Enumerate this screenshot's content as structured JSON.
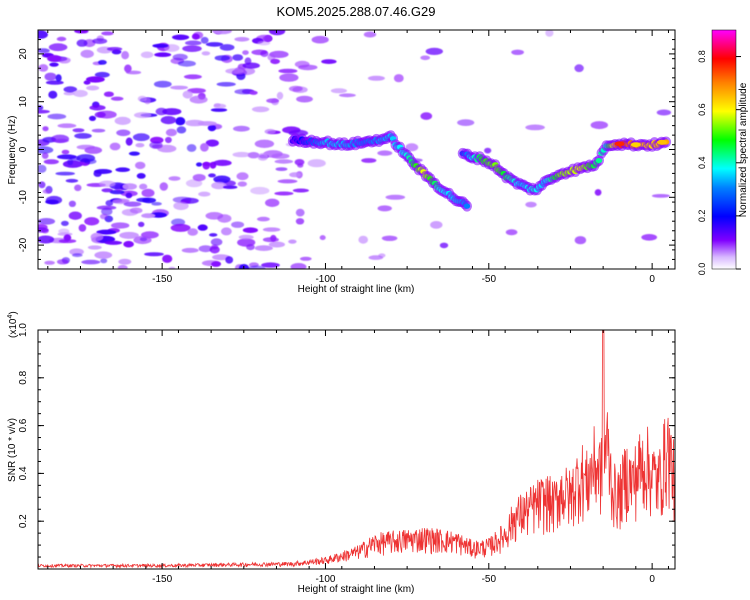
{
  "figure_title": "KOM5.2025.288.07.46.G29",
  "chart_data": [
    {
      "type": "heatmap",
      "title": "KOM5.2025.288.07.46.G29",
      "xlabel": "Height of straight line (km)",
      "ylabel": "Frequency (Hz)",
      "xlim": [
        -188,
        7
      ],
      "ylim": [
        -25,
        25
      ],
      "xticks": [
        -150,
        -100,
        -50,
        0
      ],
      "xtick_labels": [
        "-150",
        "-100",
        "-50",
        "0"
      ],
      "yticks": [
        -20,
        -10,
        0,
        10,
        20
      ],
      "ytick_labels": [
        "-20",
        "-10",
        "0",
        "10",
        "20"
      ],
      "colorbar": {
        "label": "Normalized spectral amplitude",
        "range": [
          0,
          0.9
        ],
        "ticks": [
          0,
          0.2,
          0.4,
          0.6,
          0.8
        ],
        "tick_labels": [
          "0.0",
          "0.2",
          "0.4",
          "0.6",
          "0.8"
        ],
        "colormap": [
          "#ffffff",
          "#8000ff",
          "#0000ff",
          "#00ffff",
          "#00ff00",
          "#ffff00",
          "#ff8000",
          "#ff0000",
          "#ff00ff"
        ]
      },
      "trace": {
        "description_points": [
          {
            "height_km": -110,
            "freq_hz": 2.0,
            "amp": 0.05
          },
          {
            "height_km": -100,
            "freq_hz": 1.5,
            "amp": 0.25
          },
          {
            "height_km": -95,
            "freq_hz": 1.0,
            "amp": 0.25
          },
          {
            "height_km": -88,
            "freq_hz": 1.5,
            "amp": 0.2
          },
          {
            "height_km": -80,
            "freq_hz": 2.5,
            "amp": 0.25
          },
          {
            "height_km": -75,
            "freq_hz": -1.5,
            "amp": 0.3
          },
          {
            "height_km": -70,
            "freq_hz": -5.0,
            "amp": 0.5
          },
          {
            "height_km": -65,
            "freq_hz": -8.0,
            "amp": 0.3
          },
          {
            "height_km": -60,
            "freq_hz": -10.5,
            "amp": 0.25
          },
          {
            "height_km": -56,
            "freq_hz": -12.0,
            "amp": 0.2
          },
          {
            "height_km": -58,
            "freq_hz": -1.0,
            "amp": 0.15
          },
          {
            "height_km": -52,
            "freq_hz": -2.0,
            "amp": 0.4
          },
          {
            "height_km": -48,
            "freq_hz": -3.5,
            "amp": 0.45
          },
          {
            "height_km": -44,
            "freq_hz": -6.0,
            "amp": 0.35
          },
          {
            "height_km": -40,
            "freq_hz": -7.5,
            "amp": 0.25
          },
          {
            "height_km": -36,
            "freq_hz": -8.5,
            "amp": 0.3
          },
          {
            "height_km": -33,
            "freq_hz": -7.0,
            "amp": 0.25
          },
          {
            "height_km": -28,
            "freq_hz": -5.0,
            "amp": 0.45
          },
          {
            "height_km": -22,
            "freq_hz": -4.0,
            "amp": 0.5
          },
          {
            "height_km": -17,
            "freq_hz": -3.0,
            "amp": 0.35
          },
          {
            "height_km": -14,
            "freq_hz": 1.0,
            "amp": 0.3
          },
          {
            "height_km": -10,
            "freq_hz": 1.2,
            "amp": 0.7
          },
          {
            "height_km": -5,
            "freq_hz": 1.0,
            "amp": 0.6
          },
          {
            "height_km": 0,
            "freq_hz": 1.0,
            "amp": 0.55
          },
          {
            "height_km": 5,
            "freq_hz": 1.5,
            "amp": 0.6
          }
        ]
      }
    },
    {
      "type": "line",
      "xlabel": "Height of straight line (km)",
      "ylabel": "SNR (10 * v/v)",
      "y_scale_note": "(x10",
      "y_scale_exponent": "4",
      "color": "#ee3333",
      "xlim": [
        -188,
        7
      ],
      "ylim": [
        0,
        1.0
      ],
      "xticks": [
        -150,
        -100,
        -50,
        0
      ],
      "xtick_labels": [
        "-150",
        "-100",
        "-50",
        "0"
      ],
      "yticks": [
        0.2,
        0.4,
        0.6,
        0.8,
        1.0
      ],
      "ytick_labels": [
        "0.2",
        "0.4",
        "0.6",
        "0.8",
        "1.0"
      ],
      "envelope": {
        "x": [
          -188,
          -150,
          -130,
          -110,
          -100,
          -90,
          -85,
          -80,
          -75,
          -70,
          -65,
          -60,
          -55,
          -50,
          -45,
          -42,
          -38,
          -35,
          -32,
          -30,
          -28,
          -25,
          -22,
          -20,
          -18,
          -16,
          -15,
          -14,
          -12,
          -10,
          -8,
          -6,
          -4,
          -2,
          0,
          2,
          4,
          5,
          6,
          7
        ],
        "y": [
          0.02,
          0.02,
          0.025,
          0.03,
          0.05,
          0.1,
          0.15,
          0.16,
          0.17,
          0.18,
          0.17,
          0.16,
          0.12,
          0.13,
          0.2,
          0.3,
          0.34,
          0.38,
          0.4,
          0.37,
          0.45,
          0.42,
          0.55,
          0.5,
          0.6,
          0.58,
          0.55,
          0.75,
          0.45,
          0.42,
          0.55,
          0.5,
          0.58,
          0.62,
          0.55,
          0.5,
          0.65,
          0.7,
          0.6,
          0.5
        ]
      },
      "peak": {
        "x": -15,
        "y": 1.0
      }
    }
  ]
}
